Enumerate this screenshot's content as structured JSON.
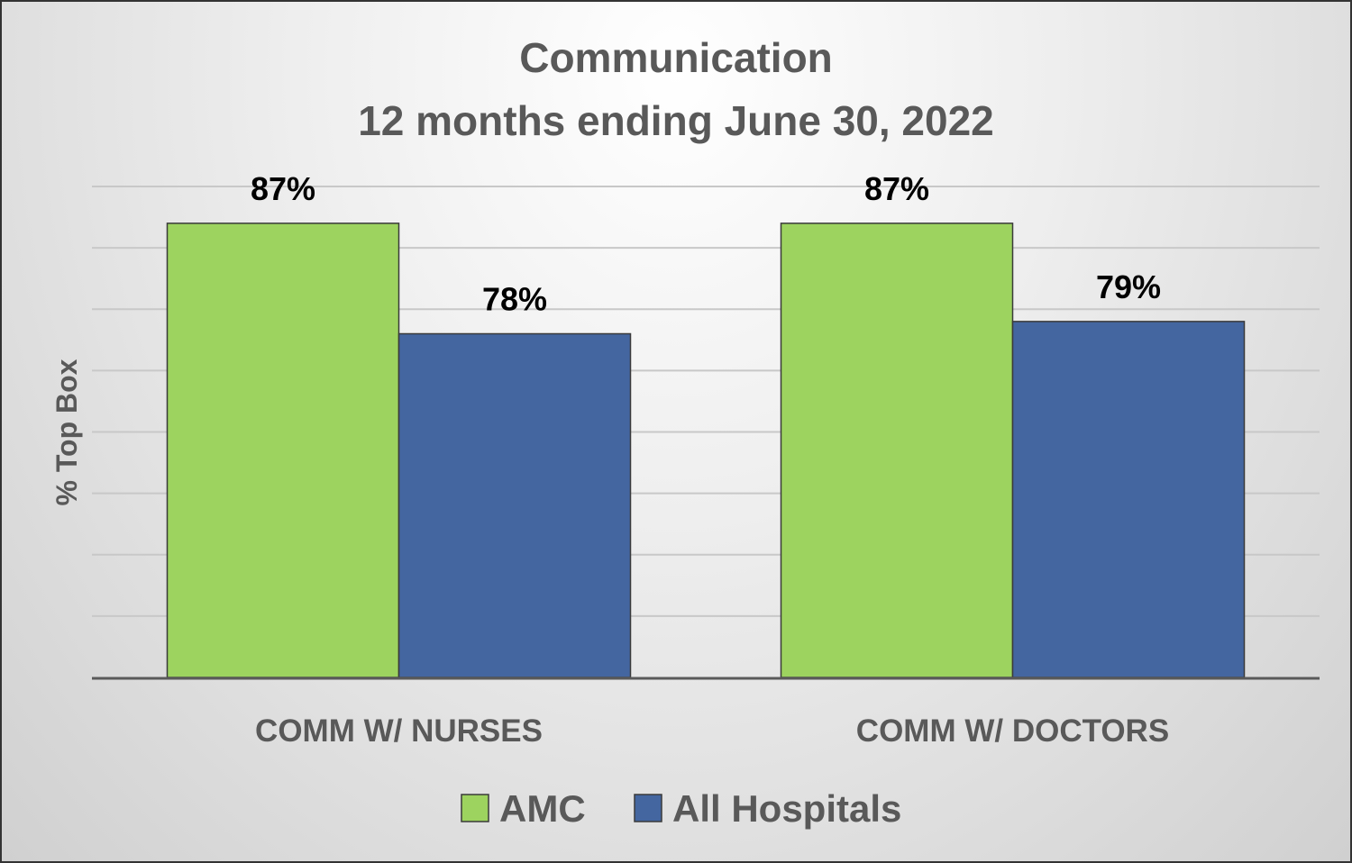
{
  "chart_data": {
    "type": "bar",
    "title": [
      "Communication",
      "12 months ending June 30, 2022"
    ],
    "ylabel": "% Top Box",
    "xlabel": "",
    "categories": [
      "COMM W/ NURSES",
      "COMM W/ DOCTORS"
    ],
    "series": [
      {
        "name": "AMC",
        "values": [
          87,
          87
        ],
        "labels": [
          "87%",
          "87%"
        ],
        "color": "#9dd35f"
      },
      {
        "name": "All Hospitals",
        "values": [
          78,
          79
        ],
        "labels": [
          "78%",
          "79%"
        ],
        "color": "#4466a0"
      }
    ],
    "ylim": [
      50,
      90
    ],
    "yticks": [
      50,
      55,
      60,
      65,
      70,
      75,
      80,
      85,
      90
    ],
    "grid": true,
    "legend": "bottom-center",
    "colors": {
      "gridline": "#c8c8c8",
      "axis": "#5a5a5a",
      "bar_border": "#3a3a3a"
    }
  }
}
